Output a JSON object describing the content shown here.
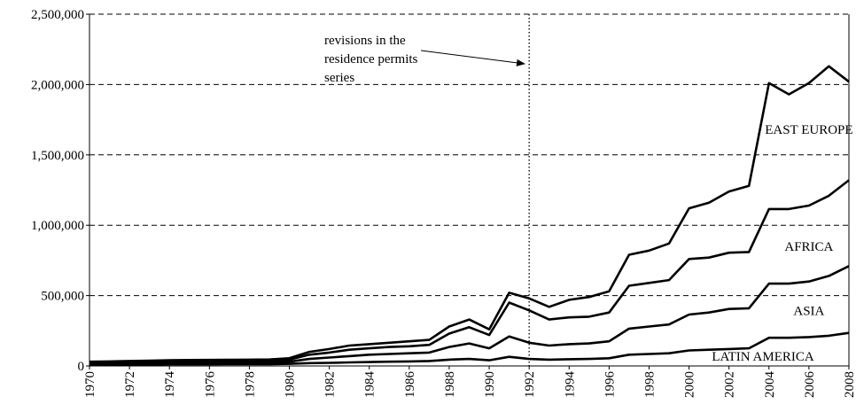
{
  "chart_data": {
    "type": "stacked-line",
    "x": [
      1970,
      1971,
      1972,
      1973,
      1974,
      1975,
      1976,
      1977,
      1978,
      1979,
      1980,
      1981,
      1982,
      1983,
      1984,
      1985,
      1986,
      1987,
      1988,
      1989,
      1990,
      1991,
      1992,
      1993,
      1994,
      1995,
      1996,
      1997,
      1998,
      1999,
      2000,
      2001,
      2002,
      2003,
      2004,
      2005,
      2006,
      2007,
      2008
    ],
    "xlim": [
      1970,
      2008
    ],
    "xticks": [
      1970,
      1972,
      1974,
      1976,
      1978,
      1980,
      1982,
      1984,
      1986,
      1988,
      1990,
      1992,
      1994,
      1996,
      1998,
      2000,
      2002,
      2004,
      2006,
      2008
    ],
    "ylim": [
      0,
      2500000
    ],
    "yticks": [
      0,
      {
        "value": 500000,
        "label": "500,000"
      },
      {
        "value": 1000000,
        "label": "1,000,000"
      },
      {
        "value": 1500000,
        "label": "1,500,000"
      },
      {
        "value": 2000000,
        "label": "2,000,000"
      },
      {
        "value": 2500000,
        "label": "2,500,000"
      }
    ],
    "grid": true,
    "series": [
      {
        "name": "LATIN AMERICA",
        "color": "#000000",
        "values": [
          10000,
          10000,
          11000,
          11000,
          12000,
          12000,
          12000,
          13000,
          13000,
          13000,
          15000,
          20000,
          22000,
          25000,
          28000,
          30000,
          32000,
          35000,
          45000,
          50000,
          40000,
          65000,
          50000,
          45000,
          48000,
          50000,
          55000,
          80000,
          85000,
          90000,
          110000,
          115000,
          120000,
          125000,
          200000,
          200000,
          205000,
          215000,
          235000
        ]
      },
      {
        "name": "ASIA",
        "color": "#000000",
        "values": [
          8000,
          9000,
          9000,
          10000,
          10000,
          11000,
          11000,
          11000,
          11000,
          12000,
          15000,
          30000,
          38000,
          45000,
          52000,
          55000,
          58000,
          60000,
          90000,
          110000,
          85000,
          145000,
          115000,
          100000,
          107000,
          110000,
          120000,
          185000,
          195000,
          205000,
          255000,
          265000,
          285000,
          285000,
          385000,
          385000,
          395000,
          425000,
          475000
        ]
      },
      {
        "name": "AFRICA",
        "color": "#000000",
        "values": [
          6000,
          6000,
          7000,
          8000,
          8000,
          8000,
          9000,
          9000,
          10000,
          10000,
          15000,
          30000,
          35000,
          45000,
          45000,
          50000,
          50000,
          55000,
          95000,
          115000,
          95000,
          240000,
          230000,
          185000,
          190000,
          190000,
          205000,
          305000,
          310000,
          315000,
          395000,
          390000,
          400000,
          400000,
          530000,
          530000,
          540000,
          570000,
          610000
        ]
      },
      {
        "name": "EAST EUROPE",
        "color": "#000000",
        "values": [
          6000,
          7000,
          8000,
          9000,
          10000,
          11000,
          11000,
          11000,
          11000,
          11000,
          10000,
          20000,
          25000,
          30000,
          30000,
          30000,
          35000,
          35000,
          50000,
          55000,
          40000,
          70000,
          85000,
          90000,
          125000,
          140000,
          150000,
          220000,
          230000,
          260000,
          360000,
          390000,
          435000,
          470000,
          895000,
          815000,
          870000,
          920000,
          700000
        ]
      }
    ],
    "vline": 1992,
    "annotation": [
      "revisions in the",
      "residence permits",
      "series"
    ]
  }
}
